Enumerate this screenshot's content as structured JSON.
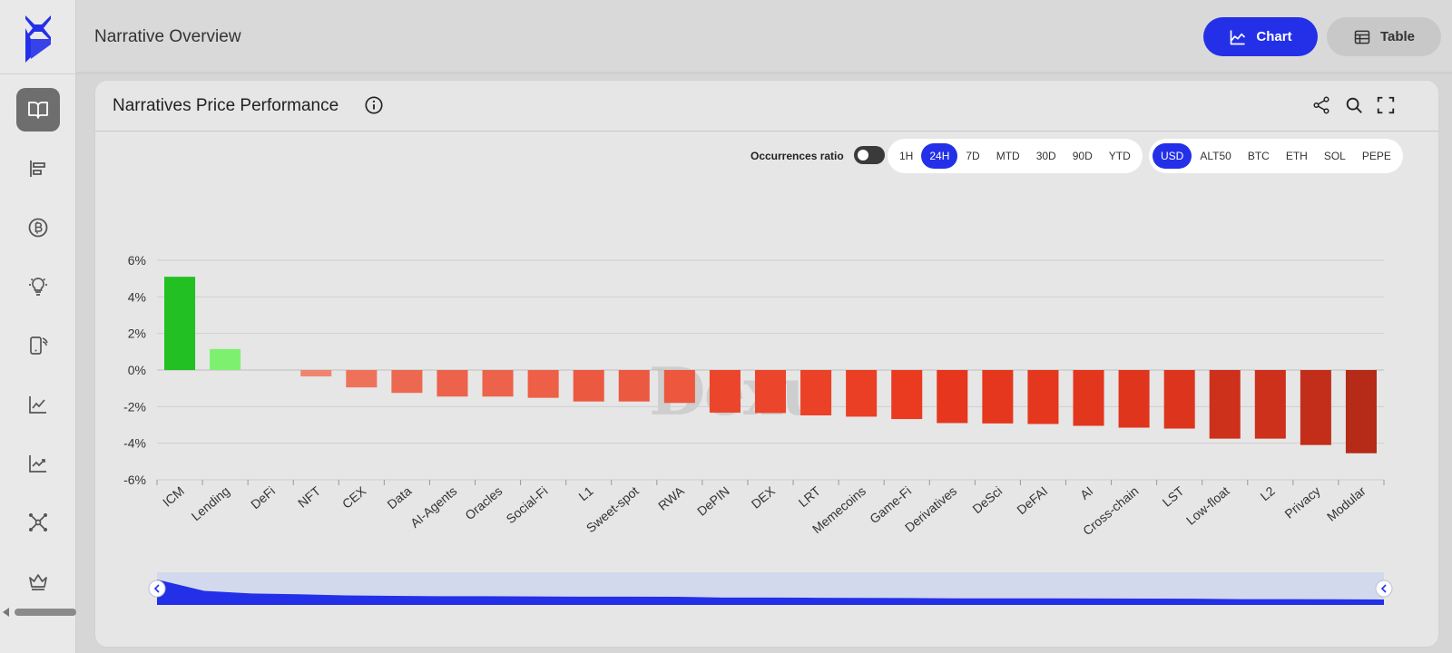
{
  "header": {
    "title": "Narrative Overview",
    "chart_button": "Chart",
    "table_button": "Table"
  },
  "card": {
    "title": "Narratives Price Performance",
    "occurrences_label": "Occurrences ratio"
  },
  "timeframes": [
    "1H",
    "24H",
    "7D",
    "MTD",
    "30D",
    "90D",
    "YTD"
  ],
  "active_timeframe": "24H",
  "currencies": [
    "USD",
    "ALT50",
    "BTC",
    "ETH",
    "SOL",
    "PEPE"
  ],
  "active_currency": "USD",
  "colors": {
    "accent": "#2330e8",
    "positive_strong": "#22c022",
    "positive_light": "#7ef070",
    "negative_light": "#f0907a",
    "negative_dark": "#b52a18"
  },
  "watermark": "Dexu",
  "chart_data": {
    "type": "bar",
    "title": "Narratives Price Performance",
    "xlabel": "",
    "ylabel": "",
    "ylim": [
      -6,
      6
    ],
    "yticks": [
      6,
      4,
      2,
      0,
      -2,
      -4,
      -6
    ],
    "ytick_labels": [
      "6%",
      "4%",
      "2%",
      "0%",
      "-2%",
      "-4%",
      "-6%"
    ],
    "categories": [
      "ICM",
      "Lending",
      "DeFi",
      "NFT",
      "CEX",
      "Data",
      "AI-Agents",
      "Oracles",
      "Social-Fi",
      "L1",
      "Sweet-spot",
      "RWA",
      "DePIN",
      "DEX",
      "LRT",
      "Memecoins",
      "Game-Fi",
      "Derivatives",
      "DeSci",
      "DeFAI",
      "AI",
      "Cross-chain",
      "LST",
      "Low-float",
      "L2",
      "Privacy",
      "Modular"
    ],
    "values": [
      5.1,
      1.15,
      0.0,
      -0.35,
      -0.95,
      -1.25,
      -1.45,
      -1.45,
      -1.52,
      -1.72,
      -1.72,
      -1.8,
      -2.33,
      -2.35,
      -2.48,
      -2.55,
      -2.68,
      -2.9,
      -2.92,
      -2.95,
      -3.05,
      -3.15,
      -3.2,
      -3.75,
      -3.75,
      -4.1,
      -4.55
    ],
    "grid": true
  }
}
